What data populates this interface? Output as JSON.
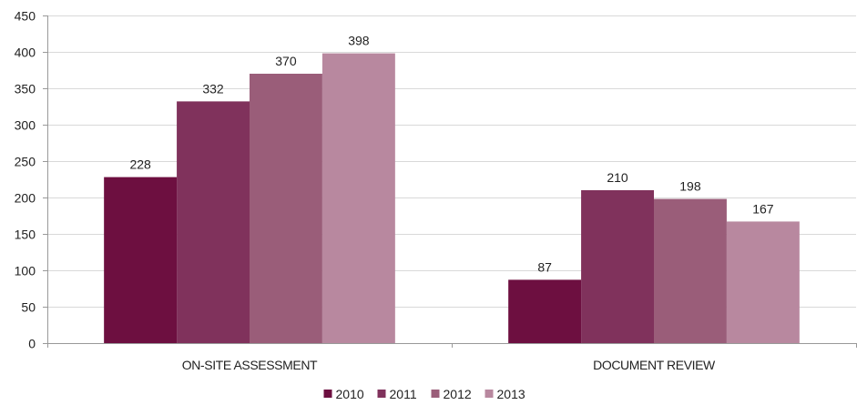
{
  "chart_data": {
    "type": "bar",
    "categories": [
      "ON-SITE ASSESSMENT",
      "DOCUMENT REVIEW"
    ],
    "series": [
      {
        "name": "2010",
        "color": "#6d0f40",
        "values": [
          228,
          87
        ]
      },
      {
        "name": "2011",
        "color": "#80325c",
        "values": [
          332,
          210
        ]
      },
      {
        "name": "2012",
        "color": "#9a5d79",
        "values": [
          370,
          198
        ]
      },
      {
        "name": "2013",
        "color": "#b8889f",
        "values": [
          398,
          167
        ]
      }
    ],
    "ylim": [
      0,
      450
    ],
    "yticks": [
      "0",
      "50",
      "100",
      "150",
      "200",
      "250",
      "300",
      "350",
      "400",
      "450"
    ],
    "grid": true,
    "legend_position": "bottom"
  }
}
